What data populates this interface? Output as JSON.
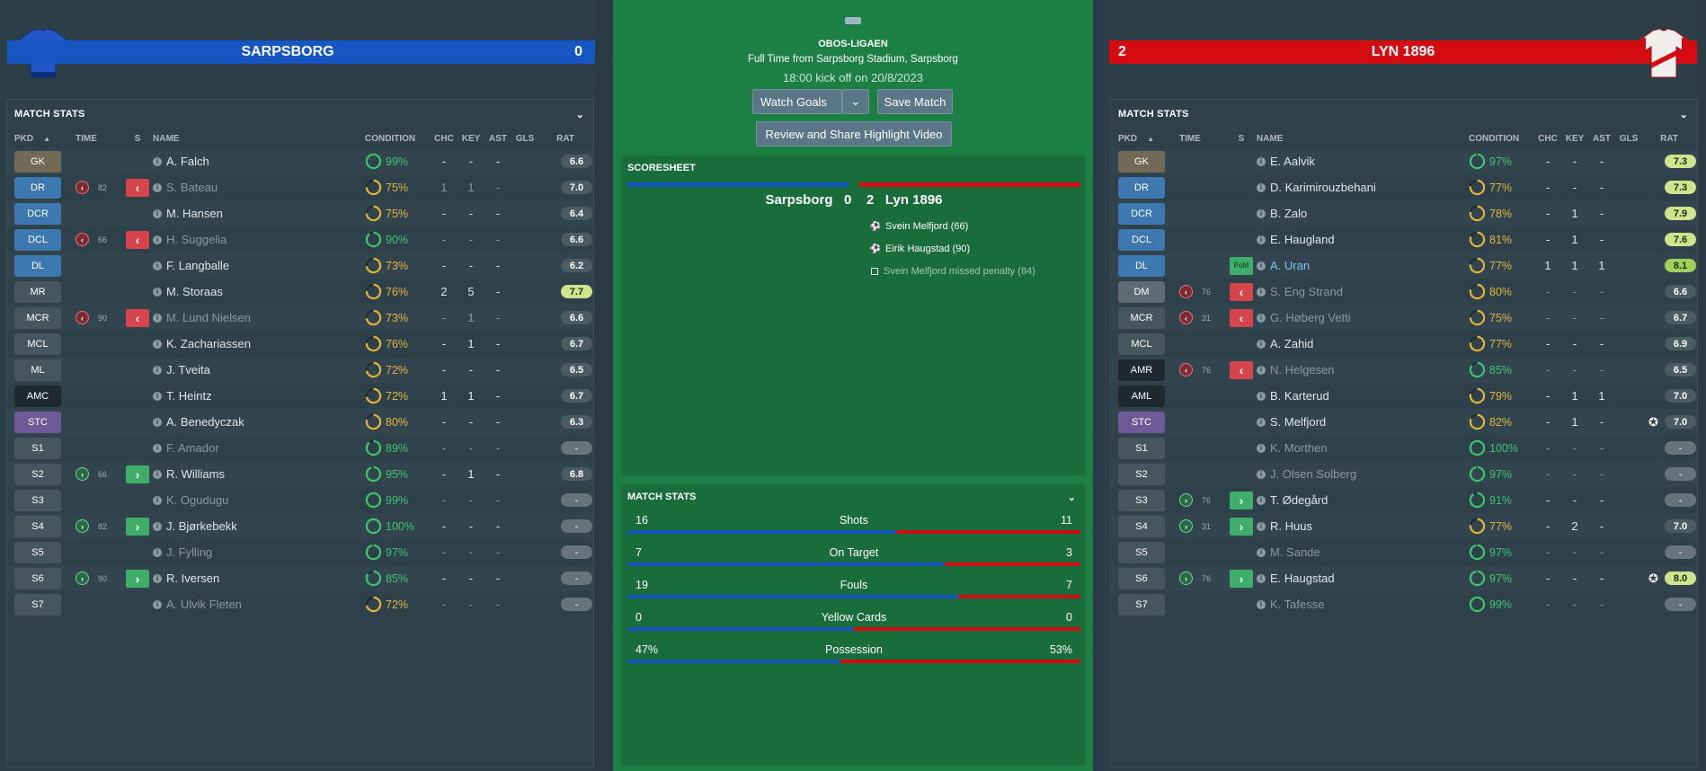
{
  "colors": {
    "home": "#1657c4",
    "away": "#d50b12",
    "pitch": "#1c8044"
  },
  "home": {
    "name": "SARPSBORG",
    "score": "0"
  },
  "away": {
    "name": "LYN 1896",
    "score": "2"
  },
  "match": {
    "league": "OBOS-LIGAEN",
    "venue": "Full Time from Sarpsborg Stadium, Sarpsborg",
    "kickoff": "18:00 kick off on 20/8/2023",
    "watch_goals": "Watch Goals",
    "save_match": "Save Match",
    "review": "Review and Share Highlight Video"
  },
  "scoresheet": {
    "title": "SCORESHEET",
    "home": "Sarpsborg",
    "home_score": "0",
    "away_score": "2",
    "away": "Lyn 1896",
    "events": [
      {
        "text": "Svein Melfjord (66)",
        "icon": "goal-icon"
      },
      {
        "text": "Eirik Haugstad (90)",
        "icon": "goal-icon"
      },
      {
        "text": "Svein Melfjord missed penalty (84)",
        "icon": "missed-penalty-icon"
      }
    ]
  },
  "match_stats": {
    "title": "MATCH STATS",
    "rows": [
      {
        "label": "Shots",
        "home": "16",
        "away": "11",
        "home_share": 0.593
      },
      {
        "label": "On Target",
        "home": "7",
        "away": "3",
        "home_share": 0.7
      },
      {
        "label": "Fouls",
        "home": "19",
        "away": "7",
        "home_share": 0.731
      },
      {
        "label": "Yellow Cards",
        "home": "0",
        "away": "0",
        "home_share": 0.5
      },
      {
        "label": "Possession",
        "home": "47%",
        "away": "53%",
        "home_share": 0.47
      }
    ]
  },
  "stats_title": "MATCH STATS",
  "headers": {
    "pkd": "PKD",
    "sort": "▲",
    "time": "TIME",
    "s": "S",
    "name": "NAME",
    "condition": "CONDITION",
    "chc": "CHC",
    "key": "KEY",
    "ast": "AST",
    "gls": "GLS",
    "rat": "RAT"
  },
  "home_players": [
    {
      "pos": "GK",
      "pc": "#726a55",
      "name": "A. Falch",
      "cond": "99%",
      "cp": 0.99,
      "chc": "-",
      "key": "-",
      "ast": "-",
      "rat": "6.6",
      "rs": "dark"
    },
    {
      "pos": "DR",
      "pc": "#3d78b1",
      "sub": "off",
      "min": "82",
      "name": "S. Bateau",
      "cond": "75%",
      "cp": 0.75,
      "chc": "1",
      "key": "1",
      "ast": "-",
      "rat": "7.0",
      "rs": "dark",
      "dim": true
    },
    {
      "pos": "DCR",
      "pc": "#3d78b1",
      "name": "M. Hansen",
      "cond": "75%",
      "cp": 0.75,
      "chc": "-",
      "key": "-",
      "ast": "-",
      "rat": "6.4",
      "rs": "dark"
    },
    {
      "pos": "DCL",
      "pc": "#3d78b1",
      "sub": "off",
      "min": "66",
      "name": "H. Suggelia",
      "cond": "90%",
      "cp": 0.9,
      "chc": "-",
      "key": "-",
      "ast": "-",
      "rat": "6.6",
      "rs": "dark",
      "dim": true
    },
    {
      "pos": "DL",
      "pc": "#3d78b1",
      "name": "F. Langballe",
      "cond": "73%",
      "cp": 0.73,
      "chc": "-",
      "key": "-",
      "ast": "-",
      "rat": "6.2",
      "rs": "dark"
    },
    {
      "pos": "MR",
      "pc": "#46565e",
      "name": "M. Storaas",
      "cond": "76%",
      "cp": 0.76,
      "chc": "2",
      "key": "5",
      "ast": "-",
      "rat": "7.7",
      "rs": "lime"
    },
    {
      "pos": "MCR",
      "pc": "#46565e",
      "sub": "off",
      "min": "90",
      "name": "M. Lund Nielsen",
      "cond": "73%",
      "cp": 0.73,
      "chc": "-",
      "key": "1",
      "ast": "-",
      "rat": "6.6",
      "rs": "dark",
      "dim": true
    },
    {
      "pos": "MCL",
      "pc": "#46565e",
      "name": "K. Zachariassen",
      "cond": "76%",
      "cp": 0.76,
      "chc": "-",
      "key": "1",
      "ast": "-",
      "rat": "6.7",
      "rs": "dark"
    },
    {
      "pos": "ML",
      "pc": "#46565e",
      "name": "J. Tveita",
      "cond": "72%",
      "cp": 0.72,
      "chc": "-",
      "key": "-",
      "ast": "-",
      "rat": "6.5",
      "rs": "dark"
    },
    {
      "pos": "AMC",
      "pc": "#1e2a30",
      "name": "T. Heintz",
      "cond": "72%",
      "cp": 0.72,
      "chc": "1",
      "key": "1",
      "ast": "-",
      "rat": "6.7",
      "rs": "dark"
    },
    {
      "pos": "STC",
      "pc": "#6e5a96",
      "name": "A. Benedyczak",
      "cond": "80%",
      "cp": 0.8,
      "chc": "-",
      "key": "-",
      "ast": "-",
      "rat": "6.3",
      "rs": "dark"
    },
    {
      "pos": "S1",
      "pc": "#46565e",
      "name": "F. Amador",
      "cond": "89%",
      "cp": 0.89,
      "chc": "-",
      "key": "-",
      "ast": "-",
      "rat": "-",
      "rs": "empty",
      "dim": true
    },
    {
      "pos": "S2",
      "pc": "#46565e",
      "sub": "on",
      "min": "66",
      "name": "R. Williams",
      "cond": "95%",
      "cp": 0.95,
      "chc": "-",
      "key": "1",
      "ast": "-",
      "rat": "6.8",
      "rs": "dark"
    },
    {
      "pos": "S3",
      "pc": "#46565e",
      "name": "K. Ogudugu",
      "cond": "99%",
      "cp": 0.99,
      "chc": "-",
      "key": "-",
      "ast": "-",
      "rat": "-",
      "rs": "empty",
      "dim": true
    },
    {
      "pos": "S4",
      "pc": "#46565e",
      "sub": "on",
      "min": "82",
      "name": "J. Bjørkebekk",
      "cond": "100%",
      "cp": 1.0,
      "chc": "-",
      "key": "-",
      "ast": "-",
      "rat": "-",
      "rs": "empty"
    },
    {
      "pos": "S5",
      "pc": "#46565e",
      "name": "J. Fylling",
      "cond": "97%",
      "cp": 0.97,
      "chc": "-",
      "key": "-",
      "ast": "-",
      "rat": "-",
      "rs": "empty",
      "dim": true
    },
    {
      "pos": "S6",
      "pc": "#46565e",
      "sub": "on",
      "min": "90",
      "name": "R. Iversen",
      "cond": "85%",
      "cp": 0.85,
      "chc": "-",
      "key": "-",
      "ast": "-",
      "rat": "-",
      "rs": "empty"
    },
    {
      "pos": "S7",
      "pc": "#46565e",
      "name": "A. Ulvik Fleten",
      "cond": "72%",
      "cp": 0.72,
      "chc": "-",
      "key": "-",
      "ast": "-",
      "rat": "-",
      "rs": "empty",
      "dim": true
    }
  ],
  "away_players": [
    {
      "pos": "GK",
      "pc": "#726a55",
      "name": "E. Aalvik",
      "cond": "97%",
      "cp": 0.97,
      "chc": "-",
      "key": "-",
      "ast": "-",
      "rat": "7.3",
      "rs": "lime"
    },
    {
      "pos": "DR",
      "pc": "#3d78b1",
      "name": "D. Karimirouzbehani",
      "cond": "77%",
      "cp": 0.77,
      "chc": "-",
      "key": "-",
      "ast": "-",
      "rat": "7.3",
      "rs": "lime"
    },
    {
      "pos": "DCR",
      "pc": "#3d78b1",
      "name": "B. Zalo",
      "cond": "78%",
      "cp": 0.78,
      "chc": "-",
      "key": "1",
      "ast": "-",
      "rat": "7.9",
      "rs": "lime"
    },
    {
      "pos": "DCL",
      "pc": "#3d78b1",
      "name": "E. Haugland",
      "cond": "81%",
      "cp": 0.81,
      "chc": "-",
      "key": "1",
      "ast": "-",
      "rat": "7.6",
      "rs": "lime"
    },
    {
      "pos": "DL",
      "pc": "#3d78b1",
      "pom": "PoM",
      "name": "A. Uran",
      "cond": "77%",
      "cp": 0.77,
      "chc": "1",
      "key": "1",
      "ast": "1",
      "rat": "8.1",
      "rs": "green",
      "hl": true
    },
    {
      "pos": "DM",
      "pc": "#5d6b72",
      "sub": "off",
      "min": "76",
      "name": "S. Eng Strand",
      "cond": "80%",
      "cp": 0.8,
      "chc": "-",
      "key": "-",
      "ast": "-",
      "rat": "6.6",
      "rs": "dark",
      "dim": true
    },
    {
      "pos": "MCR",
      "pc": "#46565e",
      "sub": "off",
      "min": "31",
      "name": "G. Høberg Vetti",
      "cond": "75%",
      "cp": 0.75,
      "chc": "-",
      "key": "-",
      "ast": "-",
      "rat": "6.7",
      "rs": "dark",
      "dim": true
    },
    {
      "pos": "MCL",
      "pc": "#46565e",
      "name": "A. Zahid",
      "cond": "77%",
      "cp": 0.77,
      "chc": "-",
      "key": "-",
      "ast": "-",
      "rat": "6.9",
      "rs": "dark"
    },
    {
      "pos": "AMR",
      "pc": "#1e2a30",
      "sub": "off",
      "min": "76",
      "name": "N. Helgesen",
      "cond": "85%",
      "cp": 0.85,
      "chc": "-",
      "key": "-",
      "ast": "-",
      "rat": "6.5",
      "rs": "dark",
      "dim": true
    },
    {
      "pos": "AML",
      "pc": "#1e2a30",
      "name": "B. Karterud",
      "cond": "79%",
      "cp": 0.79,
      "chc": "-",
      "key": "1",
      "ast": "1",
      "rat": "7.0",
      "rs": "dark"
    },
    {
      "pos": "STC",
      "pc": "#6e5a96",
      "name": "S. Melfjord",
      "cond": "82%",
      "cp": 0.82,
      "chc": "-",
      "key": "1",
      "ast": "-",
      "gls_icon": "goal-icon",
      "rat": "7.0",
      "rs": "dark"
    },
    {
      "pos": "S1",
      "pc": "#46565e",
      "name": "K. Morthen",
      "cond": "100%",
      "cp": 1.0,
      "chc": "-",
      "key": "-",
      "ast": "-",
      "rat": "-",
      "rs": "empty",
      "dim": true
    },
    {
      "pos": "S2",
      "pc": "#46565e",
      "name": "J. Olsen Solberg",
      "cond": "97%",
      "cp": 0.97,
      "chc": "-",
      "key": "-",
      "ast": "-",
      "rat": "-",
      "rs": "empty",
      "dim": true
    },
    {
      "pos": "S3",
      "pc": "#46565e",
      "sub": "on",
      "min": "76",
      "name": "T. Ødegård",
      "cond": "91%",
      "cp": 0.91,
      "chc": "-",
      "key": "-",
      "ast": "-",
      "rat": "-",
      "rs": "empty"
    },
    {
      "pos": "S4",
      "pc": "#46565e",
      "sub": "on",
      "min": "31",
      "name": "R. Huus",
      "cond": "77%",
      "cp": 0.77,
      "chc": "-",
      "key": "2",
      "ast": "-",
      "rat": "7.0",
      "rs": "dark"
    },
    {
      "pos": "S5",
      "pc": "#46565e",
      "name": "M. Sande",
      "cond": "97%",
      "cp": 0.97,
      "chc": "-",
      "key": "-",
      "ast": "-",
      "rat": "-",
      "rs": "empty",
      "dim": true
    },
    {
      "pos": "S6",
      "pc": "#46565e",
      "sub": "on",
      "min": "76",
      "name": "E. Haugstad",
      "cond": "97%",
      "cp": 0.97,
      "chc": "-",
      "key": "-",
      "ast": "-",
      "gls_icon": "goal-icon",
      "rat": "8.0",
      "rs": "lime"
    },
    {
      "pos": "S7",
      "pc": "#46565e",
      "name": "K. Tafesse",
      "cond": "99%",
      "cp": 0.99,
      "chc": "-",
      "key": "-",
      "ast": "-",
      "rat": "-",
      "rs": "empty",
      "dim": true
    }
  ]
}
